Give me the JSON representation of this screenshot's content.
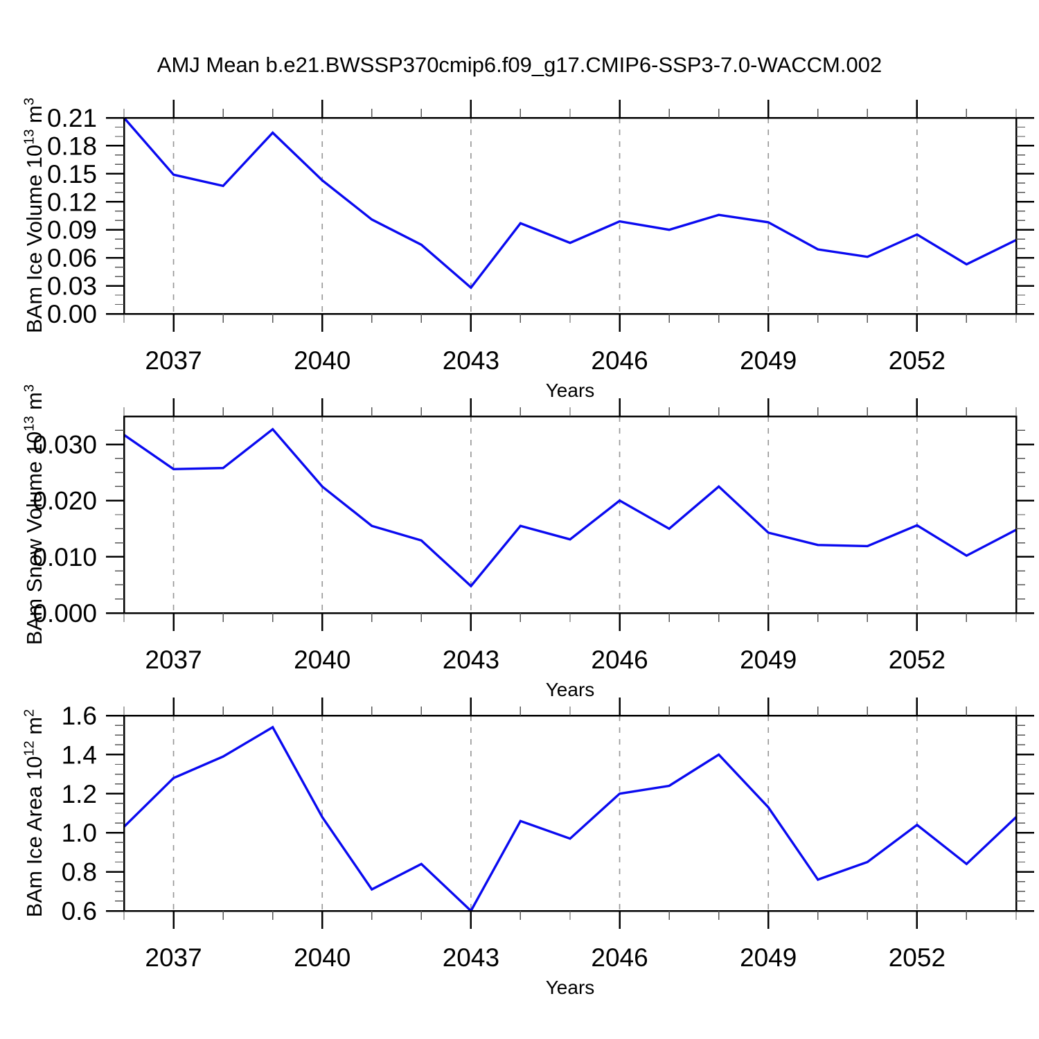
{
  "title": "AMJ Mean b.e21.BWSSP370cmip6.f09_g17.CMIP6-SSP3-7.0-WACCM.002",
  "colors": {
    "line": "#0a0af0",
    "axis": "#000000",
    "grid": "#999999",
    "minor_tick": "#555555",
    "text": "#000000",
    "background": "#ffffff"
  },
  "x_axis": {
    "label": "Years",
    "range": [
      2036,
      2054
    ],
    "major_ticks": [
      2037,
      2040,
      2043,
      2046,
      2049,
      2052
    ],
    "major_tick_labels": [
      "2037",
      "2040",
      "2043",
      "2046",
      "2049",
      "2052"
    ],
    "minor_step": 1
  },
  "chart_data": [
    {
      "type": "line",
      "name": "ice-volume",
      "ylabel": "BAm Ice Volume 10^13 m^3",
      "ylabel_parts": [
        {
          "text": "BAm Ice Volume 10"
        },
        {
          "sup": "13"
        },
        {
          "text": " m"
        },
        {
          "sup": "3"
        }
      ],
      "ylim": [
        0,
        0.21
      ],
      "y_tick_labels": [
        "0.00",
        "0.03",
        "0.06",
        "0.09",
        "0.12",
        "0.15",
        "0.18",
        "0.21"
      ],
      "y_minor_step": 0.01,
      "grid": true,
      "legend": "none",
      "x": [
        2036,
        2037,
        2038,
        2039,
        2040,
        2041,
        2042,
        2043,
        2044,
        2045,
        2046,
        2047,
        2048,
        2049,
        2050,
        2051,
        2052,
        2053,
        2054
      ],
      "values": [
        0.21,
        0.149,
        0.137,
        0.194,
        0.143,
        0.101,
        0.074,
        0.028,
        0.097,
        0.076,
        0.099,
        0.09,
        0.106,
        0.098,
        0.069,
        0.061,
        0.085,
        0.053,
        0.079
      ]
    },
    {
      "type": "line",
      "name": "snow-volume",
      "ylabel": "BAm Snow Volume 10^13 m^3",
      "ylabel_parts": [
        {
          "text": "BAm Snow Volume 10"
        },
        {
          "sup": "13"
        },
        {
          "text": " m"
        },
        {
          "sup": "3"
        }
      ],
      "ylim": [
        0,
        0.035
      ],
      "y_tick_labels": [
        "0.000",
        "0.010",
        "0.020",
        "0.030"
      ],
      "y_minor_step": 0.0025,
      "grid": true,
      "legend": "none",
      "x": [
        2036,
        2037,
        2038,
        2039,
        2040,
        2041,
        2042,
        2043,
        2044,
        2045,
        2046,
        2047,
        2048,
        2049,
        2050,
        2051,
        2052,
        2053,
        2054
      ],
      "values": [
        0.0317,
        0.0256,
        0.0258,
        0.0327,
        0.0225,
        0.0155,
        0.0129,
        0.0048,
        0.0155,
        0.0131,
        0.02,
        0.015,
        0.0225,
        0.0143,
        0.0121,
        0.0119,
        0.0156,
        0.0102,
        0.0148
      ]
    },
    {
      "type": "line",
      "name": "ice-area",
      "ylabel": "BAm Ice Area 10^12 m^2",
      "ylabel_parts": [
        {
          "text": "BAm Ice Area 10"
        },
        {
          "sup": "12"
        },
        {
          "text": " m"
        },
        {
          "sup": "2"
        }
      ],
      "ylim": [
        0.6,
        1.6
      ],
      "y_tick_labels": [
        "0.6",
        "0.8",
        "1.0",
        "1.2",
        "1.4",
        "1.6"
      ],
      "y_minor_step": 0.05,
      "grid": true,
      "legend": "none",
      "x": [
        2036,
        2037,
        2038,
        2039,
        2040,
        2041,
        2042,
        2043,
        2044,
        2045,
        2046,
        2047,
        2048,
        2049,
        2050,
        2051,
        2052,
        2053,
        2054
      ],
      "values": [
        1.03,
        1.28,
        1.39,
        1.54,
        1.08,
        0.71,
        0.84,
        0.6,
        1.06,
        0.97,
        1.2,
        1.24,
        1.4,
        1.13,
        0.76,
        0.85,
        1.04,
        0.84,
        1.08
      ]
    }
  ]
}
